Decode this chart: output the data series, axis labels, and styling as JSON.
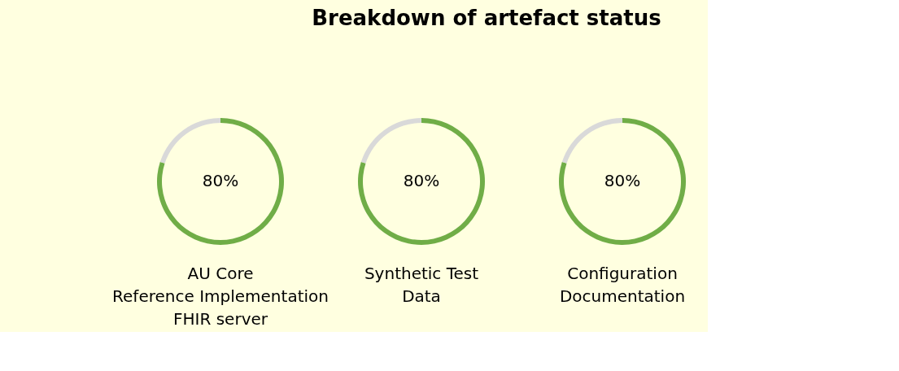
{
  "chart_data": [
    {
      "type": "donut",
      "categories": [
        null,
        null
      ],
      "values": [
        80,
        20
      ],
      "colors": [
        "#70ad47",
        "#d9d9d9"
      ],
      "value_labels": [
        "80%",
        null
      ],
      "xlabel": "AU Core\nReference Implementation\nFHIR server"
    },
    {
      "type": "donut",
      "title": "Breakdown of artefact status",
      "categories": [
        null,
        null
      ],
      "values": [
        80,
        20
      ],
      "colors": [
        "#70ad47",
        "#d9d9d9"
      ],
      "value_labels": [
        "80%",
        null
      ],
      "xlabel": "Synthetic Test\nData"
    },
    {
      "type": "donut",
      "categories": [
        null,
        null
      ],
      "values": [
        80,
        20
      ],
      "colors": [
        "#70ad47",
        "#d9d9d9"
      ],
      "value_labels": [
        "80%",
        null
      ],
      "xlabel": "Configuration\nDocumentation"
    }
  ]
}
